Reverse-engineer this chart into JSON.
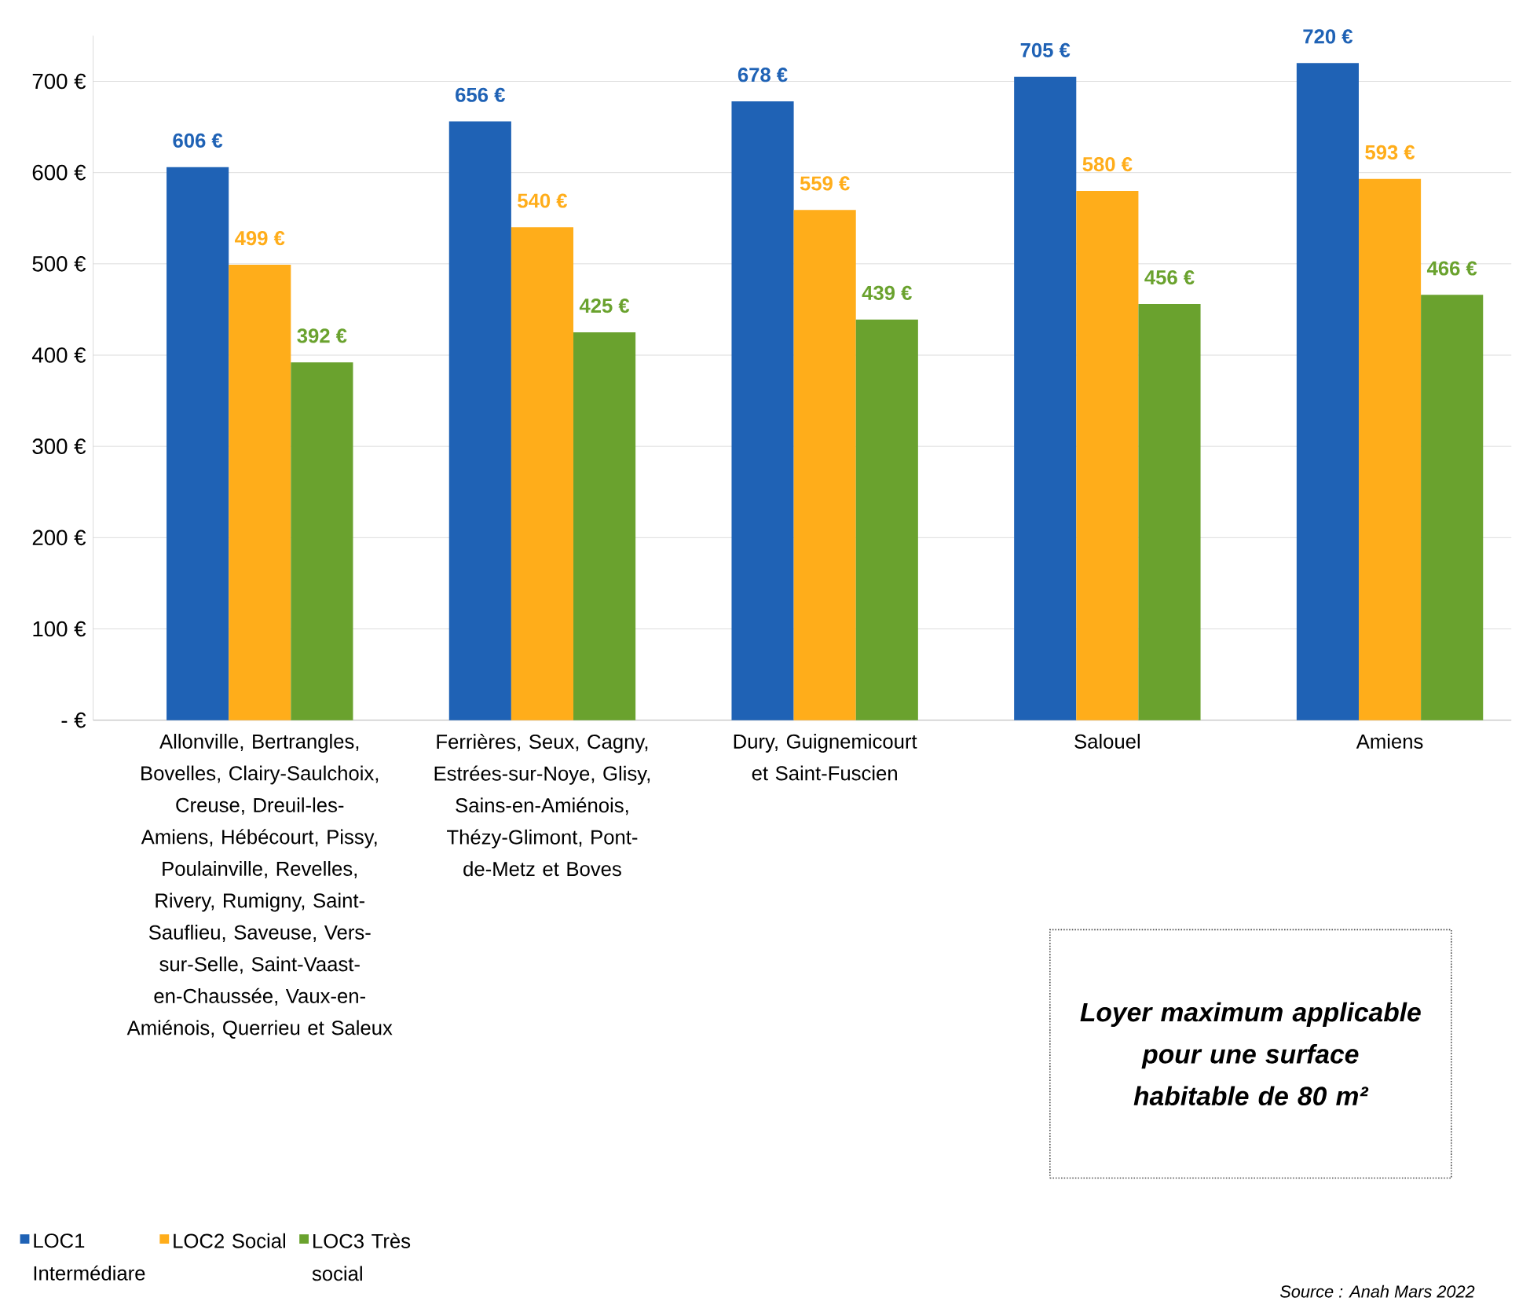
{
  "chart_data": {
    "type": "bar",
    "categories": [
      "Allonville, Bertrangles, Bovelles, Clairy-Saulchoix, Creuse, Dreuil-les-Amiens, Hébécourt, Pissy, Poulainville, Revelles, Rivery, Rumigny, Saint-Sauflieu, Saveuse, Vers-sur-Selle, Saint-Vaast-en-Chaussée, Vaux-en-Amiénois, Querrieu et Saleux",
      "Ferrières, Seux, Cagny, Estrées-sur-Noye, Glisy, Sains-en-Amiénois, Thézy-Glimont, Pont-de-Metz et Boves",
      "Dury, Guignemicourt et Saint-Fuscien",
      "Salouel",
      "Amiens"
    ],
    "series": [
      {
        "name": "LOC1 Intermédiare",
        "color": "#1f62b5",
        "values": [
          606,
          656,
          678,
          705,
          720
        ],
        "value_labels": [
          "606 €",
          "656 €",
          "678 €",
          "705 €",
          "720 €"
        ]
      },
      {
        "name": "LOC2 Social",
        "color": "#ffad1a",
        "values": [
          499,
          540,
          559,
          580,
          593
        ],
        "value_labels": [
          "499 €",
          "540 €",
          "559 €",
          "580 €",
          "593 €"
        ]
      },
      {
        "name": "LOC3 Très social",
        "color": "#6aa22e",
        "values": [
          392,
          425,
          439,
          456,
          466
        ],
        "value_labels": [
          "392 €",
          "425 €",
          "439 €",
          "456 €",
          "466 €"
        ]
      }
    ],
    "ylim": [
      0,
      750
    ],
    "yticks": [
      {
        "value": 0,
        "label": "- €"
      },
      {
        "value": 100,
        "label": "100 €"
      },
      {
        "value": 200,
        "label": "200 €"
      },
      {
        "value": 300,
        "label": "300 €"
      },
      {
        "value": 400,
        "label": "400 €"
      },
      {
        "value": 500,
        "label": "500 €"
      },
      {
        "value": 600,
        "label": "600 €"
      },
      {
        "value": 700,
        "label": "700 €"
      }
    ],
    "grid": "y",
    "legend": "bottom left",
    "annotations": [
      "Loyer maximum applicable pour une surface habitable de 80 m²",
      "Source : Anah Mars 2022"
    ]
  }
}
